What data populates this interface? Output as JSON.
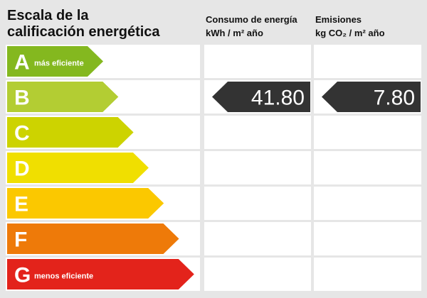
{
  "title_lines": [
    "Escala de la",
    "calificación energética"
  ],
  "columns": [
    {
      "title": "Consumo de energía",
      "unit": "kWh / m² año",
      "rating_class": "B",
      "value": "41.80"
    },
    {
      "title": "Emisiones",
      "unit": "kg CO₂ / m² año",
      "rating_class": "B",
      "value": "7.80"
    }
  ],
  "rows": [
    {
      "letter": "A",
      "note": "más eficiente",
      "color": "#84b81f"
    },
    {
      "letter": "B",
      "color": "#b3cd33"
    },
    {
      "letter": "C",
      "color": "#cdd300"
    },
    {
      "letter": "D",
      "color": "#f0df00"
    },
    {
      "letter": "E",
      "color": "#fbc800"
    },
    {
      "letter": "F",
      "color": "#ee7a09"
    },
    {
      "letter": "G",
      "note": "menos eficiente",
      "color": "#e3231b"
    }
  ]
}
